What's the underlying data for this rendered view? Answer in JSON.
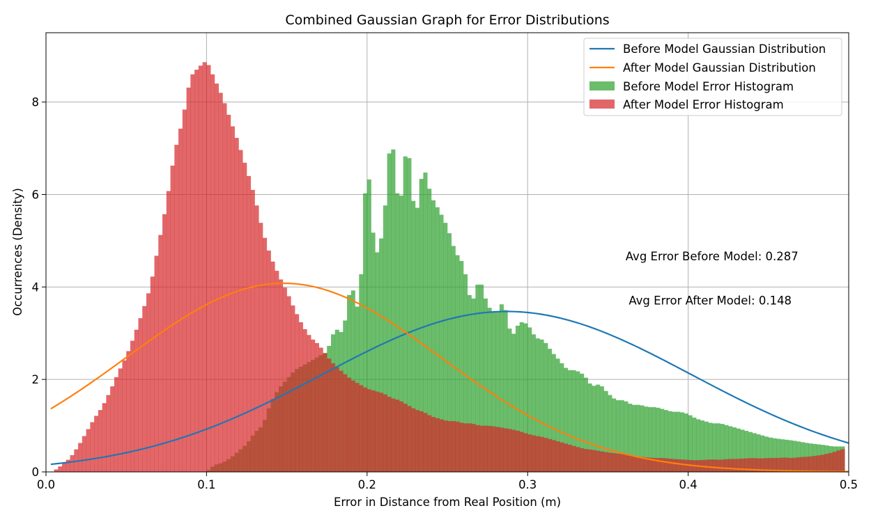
{
  "chart_data": {
    "type": "bar",
    "title": "Combined Gaussian Graph for Error Distributions",
    "xlabel": "Error in Distance from Real Position (m)",
    "ylabel": "Occurrences (Density)",
    "xlim": [
      0.0,
      0.5
    ],
    "ylim": [
      0,
      9.5
    ],
    "xticks": [
      "0.0",
      "0.1",
      "0.2",
      "0.3",
      "0.4",
      "0.5"
    ],
    "yticks": [
      "0",
      "2",
      "4",
      "6",
      "8"
    ],
    "grid": true,
    "legend_position": "top-right",
    "colors": {
      "before_line": "#1f77b4",
      "after_line": "#ff7f0e",
      "before_hist": "#2ca02c",
      "after_hist": "#d62728"
    },
    "series": [
      {
        "name": "Before Model Gaussian Distribution",
        "kind": "gaussian",
        "mean": 0.287,
        "peak": 3.47,
        "sd": 0.115
      },
      {
        "name": "After Model Gaussian Distribution",
        "kind": "gaussian",
        "mean": 0.148,
        "peak": 4.08,
        "sd": 0.098
      },
      {
        "name": "Before Model Error Histogram",
        "kind": "histogram",
        "bin_width": 0.0025,
        "points": [
          [
            0.1,
            0.0
          ],
          [
            0.105,
            0.15
          ],
          [
            0.11,
            0.2
          ],
          [
            0.115,
            0.3
          ],
          [
            0.12,
            0.45
          ],
          [
            0.125,
            0.6
          ],
          [
            0.13,
            0.85
          ],
          [
            0.135,
            1.0
          ],
          [
            0.14,
            1.5
          ],
          [
            0.145,
            1.8
          ],
          [
            0.15,
            2.0
          ],
          [
            0.155,
            2.2
          ],
          [
            0.16,
            2.3
          ],
          [
            0.165,
            2.4
          ],
          [
            0.17,
            2.5
          ],
          [
            0.175,
            2.6
          ],
          [
            0.18,
            3.1
          ],
          [
            0.185,
            3.0
          ],
          [
            0.19,
            4.1
          ],
          [
            0.195,
            3.4
          ],
          [
            0.2,
            6.9
          ],
          [
            0.205,
            4.6
          ],
          [
            0.21,
            5.2
          ],
          [
            0.215,
            7.45
          ],
          [
            0.22,
            5.55
          ],
          [
            0.225,
            7.25
          ],
          [
            0.23,
            5.4
          ],
          [
            0.235,
            6.65
          ],
          [
            0.24,
            5.95
          ],
          [
            0.245,
            5.65
          ],
          [
            0.25,
            5.3
          ],
          [
            0.255,
            4.75
          ],
          [
            0.26,
            4.5
          ],
          [
            0.265,
            3.6
          ],
          [
            0.27,
            4.2
          ],
          [
            0.275,
            3.6
          ],
          [
            0.28,
            3.4
          ],
          [
            0.285,
            3.7
          ],
          [
            0.29,
            2.9
          ],
          [
            0.295,
            3.25
          ],
          [
            0.3,
            3.2
          ],
          [
            0.305,
            2.9
          ],
          [
            0.31,
            2.85
          ],
          [
            0.315,
            2.6
          ],
          [
            0.32,
            2.4
          ],
          [
            0.325,
            2.2
          ],
          [
            0.33,
            2.2
          ],
          [
            0.335,
            2.1
          ],
          [
            0.34,
            1.85
          ],
          [
            0.345,
            1.9
          ],
          [
            0.35,
            1.7
          ],
          [
            0.355,
            1.55
          ],
          [
            0.36,
            1.55
          ],
          [
            0.365,
            1.45
          ],
          [
            0.37,
            1.45
          ],
          [
            0.375,
            1.4
          ],
          [
            0.38,
            1.4
          ],
          [
            0.385,
            1.35
          ],
          [
            0.39,
            1.3
          ],
          [
            0.395,
            1.3
          ],
          [
            0.4,
            1.25
          ],
          [
            0.405,
            1.15
          ],
          [
            0.41,
            1.1
          ],
          [
            0.415,
            1.05
          ],
          [
            0.42,
            1.05
          ],
          [
            0.425,
            1.0
          ],
          [
            0.43,
            0.95
          ],
          [
            0.435,
            0.9
          ],
          [
            0.44,
            0.85
          ],
          [
            0.445,
            0.8
          ],
          [
            0.45,
            0.75
          ],
          [
            0.455,
            0.72
          ],
          [
            0.46,
            0.7
          ],
          [
            0.465,
            0.68
          ],
          [
            0.47,
            0.65
          ],
          [
            0.475,
            0.62
          ],
          [
            0.48,
            0.6
          ],
          [
            0.485,
            0.58
          ],
          [
            0.49,
            0.55
          ],
          [
            0.495,
            0.55
          ],
          [
            0.4975,
            0.55
          ]
        ]
      },
      {
        "name": "After Model Error Histogram",
        "kind": "histogram",
        "bin_width": 0.0025,
        "points": [
          [
            0.005,
            0.02
          ],
          [
            0.01,
            0.15
          ],
          [
            0.015,
            0.3
          ],
          [
            0.02,
            0.55
          ],
          [
            0.025,
            0.85
          ],
          [
            0.03,
            1.15
          ],
          [
            0.035,
            1.4
          ],
          [
            0.04,
            1.75
          ],
          [
            0.045,
            2.15
          ],
          [
            0.05,
            2.5
          ],
          [
            0.055,
            2.95
          ],
          [
            0.06,
            3.45
          ],
          [
            0.065,
            4.0
          ],
          [
            0.07,
            4.9
          ],
          [
            0.075,
            5.8
          ],
          [
            0.08,
            6.9
          ],
          [
            0.085,
            7.6
          ],
          [
            0.09,
            8.55
          ],
          [
            0.095,
            8.75
          ],
          [
            0.1,
            8.9
          ],
          [
            0.105,
            8.5
          ],
          [
            0.11,
            8.1
          ],
          [
            0.115,
            7.6
          ],
          [
            0.12,
            7.1
          ],
          [
            0.125,
            6.55
          ],
          [
            0.13,
            5.95
          ],
          [
            0.135,
            5.2
          ],
          [
            0.14,
            4.65
          ],
          [
            0.145,
            4.25
          ],
          [
            0.15,
            3.9
          ],
          [
            0.155,
            3.5
          ],
          [
            0.16,
            3.15
          ],
          [
            0.165,
            2.9
          ],
          [
            0.17,
            2.75
          ],
          [
            0.175,
            2.5
          ],
          [
            0.18,
            2.3
          ],
          [
            0.185,
            2.15
          ],
          [
            0.19,
            2.0
          ],
          [
            0.195,
            1.9
          ],
          [
            0.2,
            1.8
          ],
          [
            0.205,
            1.75
          ],
          [
            0.21,
            1.7
          ],
          [
            0.215,
            1.6
          ],
          [
            0.22,
            1.55
          ],
          [
            0.225,
            1.45
          ],
          [
            0.23,
            1.35
          ],
          [
            0.235,
            1.3
          ],
          [
            0.24,
            1.2
          ],
          [
            0.245,
            1.15
          ],
          [
            0.25,
            1.1
          ],
          [
            0.255,
            1.1
          ],
          [
            0.26,
            1.05
          ],
          [
            0.265,
            1.05
          ],
          [
            0.27,
            1.0
          ],
          [
            0.275,
            1.0
          ],
          [
            0.28,
            0.98
          ],
          [
            0.285,
            0.95
          ],
          [
            0.29,
            0.92
          ],
          [
            0.295,
            0.88
          ],
          [
            0.3,
            0.82
          ],
          [
            0.305,
            0.78
          ],
          [
            0.31,
            0.75
          ],
          [
            0.315,
            0.7
          ],
          [
            0.32,
            0.65
          ],
          [
            0.325,
            0.6
          ],
          [
            0.33,
            0.55
          ],
          [
            0.335,
            0.5
          ],
          [
            0.34,
            0.48
          ],
          [
            0.345,
            0.45
          ],
          [
            0.35,
            0.42
          ],
          [
            0.355,
            0.4
          ],
          [
            0.36,
            0.38
          ],
          [
            0.365,
            0.35
          ],
          [
            0.37,
            0.33
          ],
          [
            0.375,
            0.31
          ],
          [
            0.38,
            0.3
          ],
          [
            0.385,
            0.3
          ],
          [
            0.39,
            0.28
          ],
          [
            0.395,
            0.27
          ],
          [
            0.4,
            0.26
          ],
          [
            0.405,
            0.25
          ],
          [
            0.41,
            0.26
          ],
          [
            0.415,
            0.27
          ],
          [
            0.42,
            0.26
          ],
          [
            0.425,
            0.28
          ],
          [
            0.43,
            0.28
          ],
          [
            0.435,
            0.29
          ],
          [
            0.44,
            0.3
          ],
          [
            0.445,
            0.29
          ],
          [
            0.45,
            0.3
          ],
          [
            0.455,
            0.3
          ],
          [
            0.46,
            0.31
          ],
          [
            0.465,
            0.3
          ],
          [
            0.47,
            0.32
          ],
          [
            0.475,
            0.33
          ],
          [
            0.48,
            0.35
          ],
          [
            0.485,
            0.38
          ],
          [
            0.49,
            0.42
          ],
          [
            0.495,
            0.48
          ],
          [
            0.4975,
            0.5
          ]
        ]
      }
    ],
    "annotations": [
      {
        "text": "Avg Error Before Model: 0.287",
        "x": 0.361,
        "y": 4.58
      },
      {
        "text": "Avg Error After Model: 0.148",
        "x": 0.363,
        "y": 3.62
      }
    ]
  }
}
